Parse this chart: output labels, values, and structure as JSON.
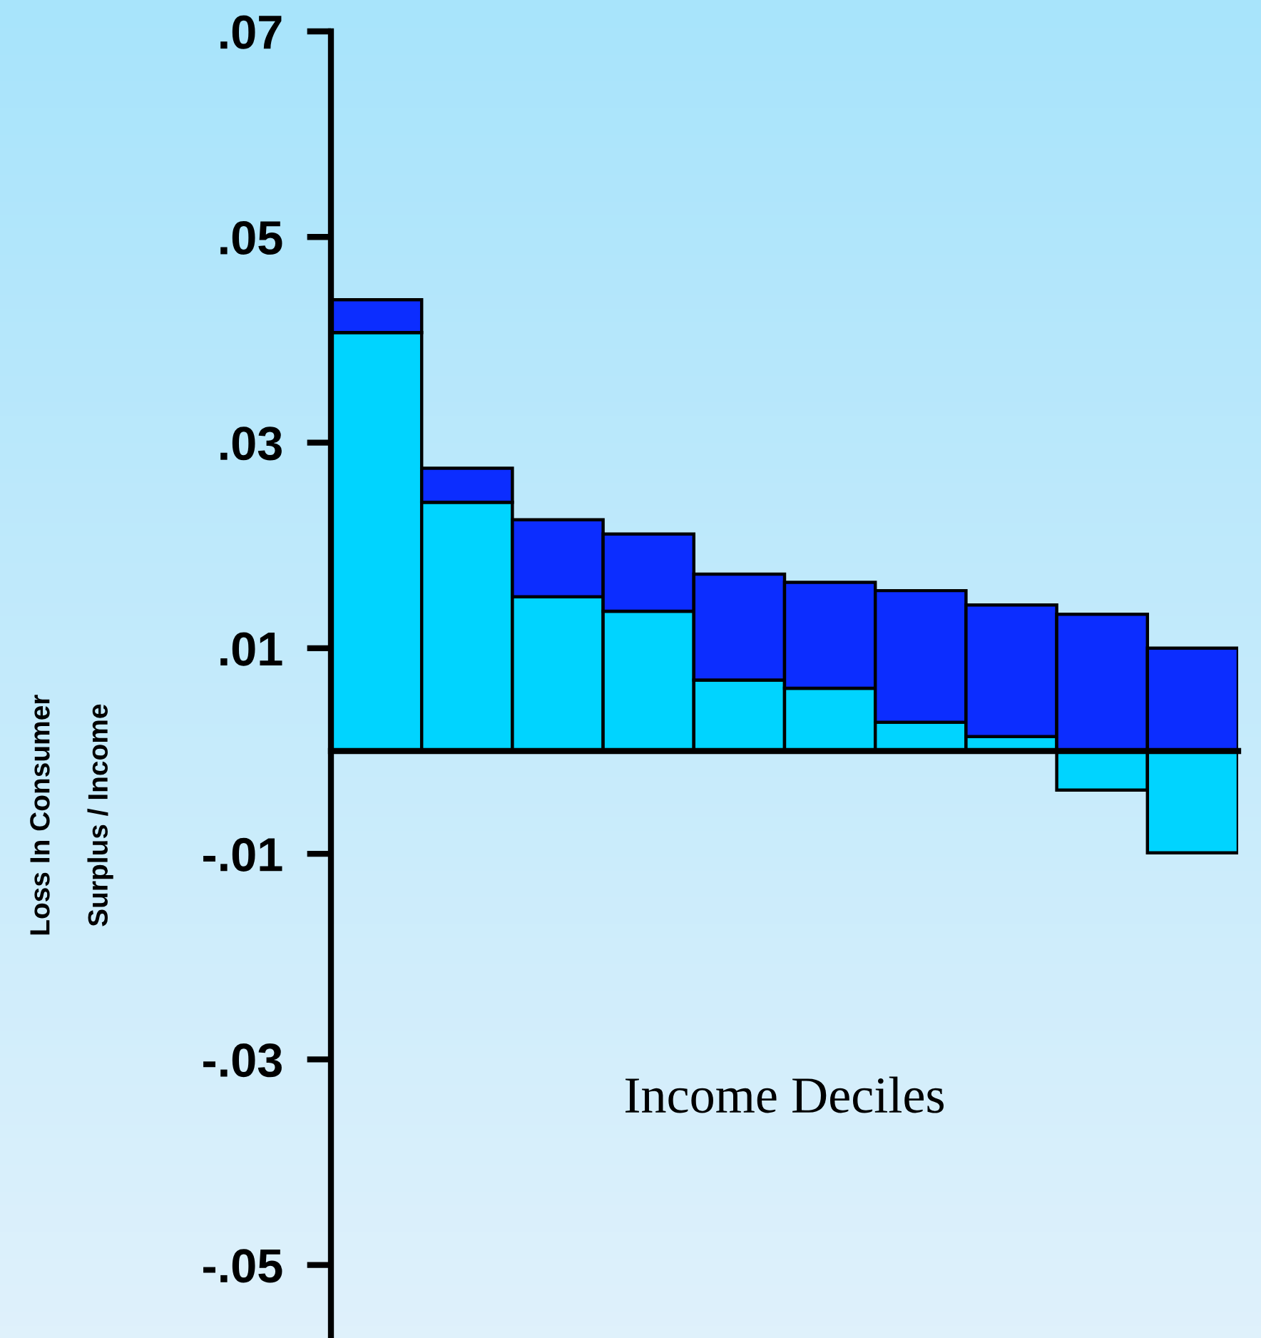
{
  "chart_data": {
    "type": "bar",
    "stacked": true,
    "xlabel": "Income Deciles",
    "ylabel": "Loss In Consumer\nSurplus / Income",
    "categories": [
      null,
      null,
      null,
      null,
      null,
      null,
      null,
      null,
      null,
      null
    ],
    "series": [
      {
        "color": "#00d4ff",
        "values": [
          0.0407,
          0.0242,
          0.015,
          0.0136,
          0.0069,
          0.0061,
          0.0028,
          0.0014,
          -0.0038,
          -0.0099
        ]
      },
      {
        "color": "#0c2dff",
        "values": [
          0.0032,
          0.0033,
          0.0075,
          0.0075,
          0.0103,
          0.0103,
          0.0128,
          0.0128,
          0.0133,
          0.01
        ]
      }
    ],
    "ylim": [
      -0.0571,
      0.07
    ],
    "yticks": [
      {
        "value": 0.07,
        "label": ".07"
      },
      {
        "value": 0.05,
        "label": ".05"
      },
      {
        "value": 0.03,
        "label": ".03"
      },
      {
        "value": 0.01,
        "label": ".01"
      },
      {
        "value": -0.01,
        "label": "-.01"
      },
      {
        "value": -0.03,
        "label": "-.03"
      },
      {
        "value": -0.05,
        "label": "-.05"
      }
    ],
    "grid": false,
    "legend": false
  }
}
